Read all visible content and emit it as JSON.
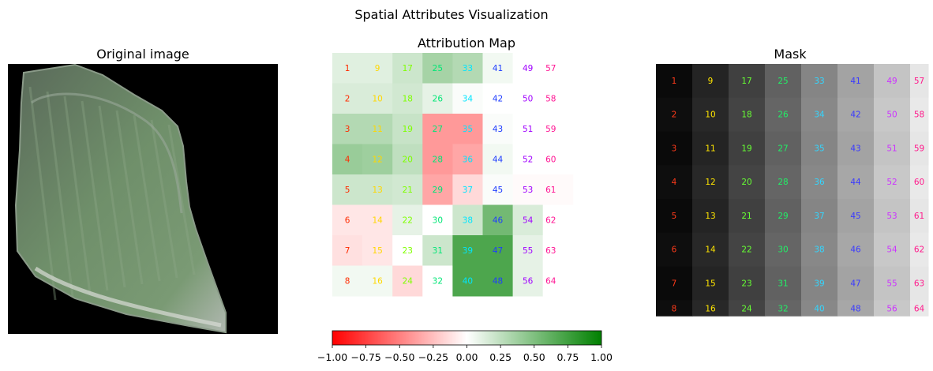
{
  "figure": {
    "suptitle": "Spatial Attributes Visualization"
  },
  "panels": {
    "original": {
      "title": "Original image"
    },
    "attribution": {
      "title": "Attribution Map"
    },
    "mask": {
      "title": "Mask"
    }
  },
  "colors": {
    "negative": "#ff0000",
    "neutral": "#ffffff",
    "positive": "#008000",
    "field_green": "#6f8f6a",
    "background": "#000000"
  },
  "chart_data": [
    {
      "type": "heatmap",
      "title": "Attribution Map",
      "grid": {
        "rows": 8,
        "cols": 8
      },
      "segment_labels": [
        [
          1,
          9,
          17,
          25,
          33,
          41,
          49,
          57
        ],
        [
          2,
          10,
          18,
          26,
          34,
          42,
          50,
          58
        ],
        [
          3,
          11,
          19,
          27,
          35,
          43,
          51,
          59
        ],
        [
          4,
          12,
          20,
          28,
          36,
          44,
          52,
          60
        ],
        [
          5,
          13,
          21,
          29,
          37,
          45,
          53,
          61
        ],
        [
          6,
          14,
          22,
          30,
          38,
          46,
          54,
          62
        ],
        [
          7,
          15,
          23,
          31,
          39,
          47,
          55,
          63
        ],
        [
          8,
          16,
          24,
          32,
          40,
          48,
          56,
          64
        ]
      ],
      "values": [
        [
          0.12,
          0.12,
          0.2,
          0.35,
          0.3,
          0.05,
          0.0,
          0.0
        ],
        [
          0.15,
          0.15,
          0.18,
          0.1,
          0.02,
          0.0,
          0.0,
          0.0
        ],
        [
          0.3,
          0.3,
          0.22,
          -0.4,
          -0.4,
          0.02,
          0.0,
          0.0
        ],
        [
          0.4,
          0.38,
          0.25,
          -0.4,
          -0.35,
          0.05,
          0.0,
          0.0
        ],
        [
          0.2,
          0.2,
          0.18,
          -0.35,
          -0.15,
          0.02,
          -0.02,
          -0.02
        ],
        [
          -0.1,
          -0.1,
          0.1,
          0.0,
          0.2,
          0.55,
          0.15,
          0.0
        ],
        [
          -0.12,
          -0.1,
          0.0,
          0.2,
          0.7,
          0.7,
          0.1,
          0.0
        ],
        [
          0.05,
          0.05,
          -0.15,
          0.0,
          0.7,
          0.7,
          0.1,
          0.0
        ]
      ],
      "colorbar": {
        "min": -1.0,
        "max": 1.0,
        "ticks": [
          "−1.00",
          "−0.75",
          "−0.50",
          "−0.25",
          "0.00",
          "0.25",
          "0.50",
          "0.75",
          "1.00"
        ]
      }
    },
    {
      "type": "heatmap",
      "title": "Mask",
      "grid": {
        "rows": 8,
        "cols": 8
      },
      "segment_labels": [
        [
          1,
          9,
          17,
          25,
          33,
          41,
          49,
          57
        ],
        [
          2,
          10,
          18,
          26,
          34,
          42,
          50,
          58
        ],
        [
          3,
          11,
          19,
          27,
          35,
          43,
          51,
          59
        ],
        [
          4,
          12,
          20,
          28,
          36,
          44,
          52,
          60
        ],
        [
          5,
          13,
          21,
          29,
          37,
          45,
          53,
          61
        ],
        [
          6,
          14,
          22,
          30,
          38,
          46,
          54,
          62
        ],
        [
          7,
          15,
          23,
          31,
          39,
          47,
          55,
          63
        ],
        [
          8,
          16,
          24,
          32,
          40,
          48,
          56,
          64
        ]
      ],
      "column_gray_levels": [
        0.04,
        0.14,
        0.25,
        0.38,
        0.52,
        0.64,
        0.77,
        0.9
      ]
    }
  ]
}
